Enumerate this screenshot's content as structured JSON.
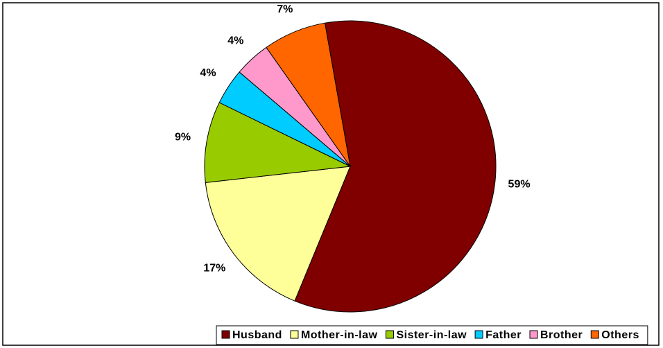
{
  "chart_data": {
    "type": "pie",
    "categories": [
      "Husband",
      "Mother-in-law",
      "Sister-in-law",
      "Father",
      "Brother",
      "Others"
    ],
    "values": [
      59,
      17,
      9,
      4,
      4,
      7
    ],
    "value_labels": [
      "59%",
      "17%",
      "9%",
      "4%",
      "4%",
      "7%"
    ],
    "colors": [
      "#800000",
      "#ffff99",
      "#99cc00",
      "#00ccff",
      "#ff99cc",
      "#ff6600"
    ],
    "legend": "bottom"
  }
}
